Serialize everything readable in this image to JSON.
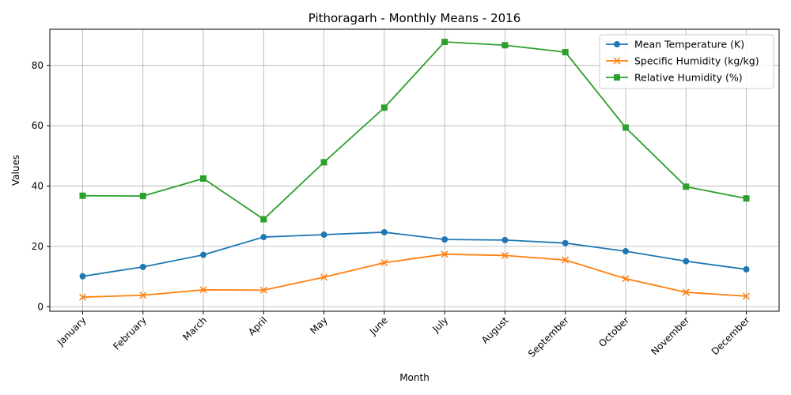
{
  "chart_data": {
    "type": "line",
    "title": "Pithoragarh - Monthly Means - 2016",
    "xlabel": "Month",
    "ylabel": "Values",
    "categories": [
      "January",
      "February",
      "March",
      "April",
      "May",
      "June",
      "July",
      "August",
      "September",
      "October",
      "November",
      "December"
    ],
    "ylim": [
      -1.5,
      92
    ],
    "yticks": [
      0,
      20,
      40,
      60,
      80
    ],
    "grid": true,
    "legend_position": "top-right",
    "series": [
      {
        "name": "Mean Temperature (K)",
        "color": "#1f77b4",
        "marker": "circle",
        "values": [
          10.1,
          13.2,
          17.2,
          23.1,
          23.9,
          24.7,
          22.3,
          22.1,
          21.1,
          18.4,
          15.1,
          12.4
        ]
      },
      {
        "name": "Specific Humidity (kg/kg)",
        "color": "#ff7f0e",
        "marker": "x",
        "values": [
          3.2,
          3.8,
          5.6,
          5.5,
          9.8,
          14.6,
          17.4,
          17.0,
          15.5,
          9.3,
          4.8,
          3.5
        ]
      },
      {
        "name": "Relative Humidity (%)",
        "color": "#2ca02c",
        "marker": "square",
        "values": [
          36.8,
          36.7,
          42.5,
          29.0,
          47.9,
          66.0,
          87.8,
          86.7,
          84.4,
          59.4,
          39.8,
          35.9
        ]
      }
    ]
  }
}
